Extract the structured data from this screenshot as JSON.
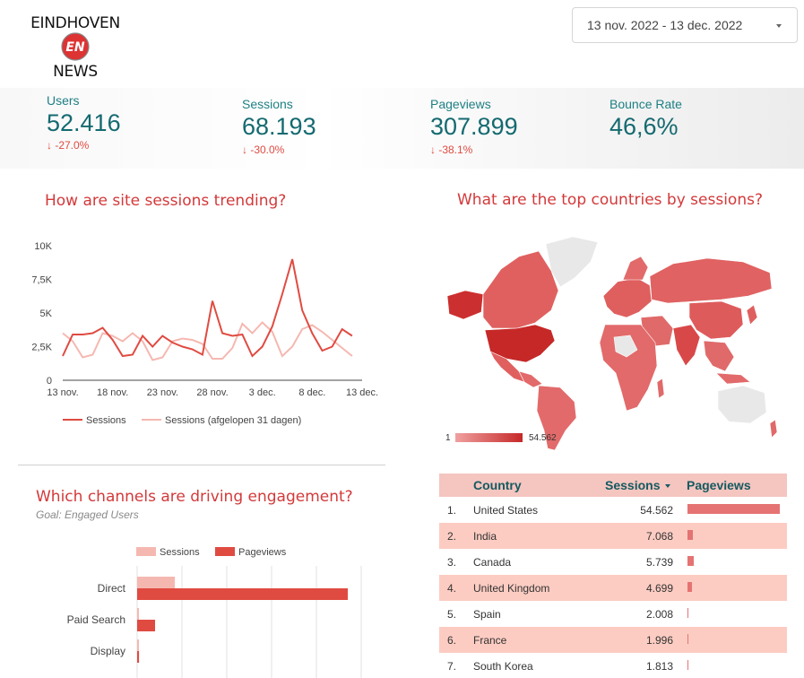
{
  "brand": {
    "line1": "EINDHOVEN",
    "line2": "NEWS",
    "mark": "EN"
  },
  "date_range": {
    "value": "13 nov. 2022 - 13 dec. 2022"
  },
  "kpis": {
    "users": {
      "label": "Users",
      "value": "52.416",
      "delta": "↓ -27.0%"
    },
    "sessions": {
      "label": "Sessions",
      "value": "68.193",
      "delta": "↓ -30.0%"
    },
    "pageviews": {
      "label": "Pageviews",
      "value": "307.899",
      "delta": "↓ -38.1%"
    },
    "bounce_rate": {
      "label": "Bounce Rate",
      "value": "46,6%"
    }
  },
  "trend": {
    "title": "How are site sessions trending?"
  },
  "map": {
    "title": "What are the top countries by sessions?",
    "legend_min": "1",
    "legend_max": "54.562"
  },
  "channels": {
    "title": "Which channels are driving engagement?",
    "subtitle": "Goal: Engaged Users"
  },
  "colors": {
    "primary": "#e04b41",
    "light": "#f5b8b1",
    "teal": "#145a60",
    "map_dark": "#cc2f2f",
    "map_mid": "#e06060"
  },
  "country_table": {
    "headers": {
      "country": "Country",
      "sessions": "Sessions",
      "pageviews": "Pageviews"
    },
    "rows": [
      {
        "rank": "1.",
        "country": "United States",
        "sessions": "54.562",
        "pv_share": 1.0
      },
      {
        "rank": "2.",
        "country": "India",
        "sessions": "7.068",
        "pv_share": 0.06
      },
      {
        "rank": "3.",
        "country": "Canada",
        "sessions": "5.739",
        "pv_share": 0.07
      },
      {
        "rank": "4.",
        "country": "United Kingdom",
        "sessions": "4.699",
        "pv_share": 0.05
      },
      {
        "rank": "5.",
        "country": "Spain",
        "sessions": "2.008",
        "pv_share": 0.01
      },
      {
        "rank": "6.",
        "country": "France",
        "sessions": "1.996",
        "pv_share": 0.01
      },
      {
        "rank": "7.",
        "country": "South Korea",
        "sessions": "1.813",
        "pv_share": 0.01
      }
    ]
  },
  "chart_data": [
    {
      "type": "line",
      "x": [
        "13 nov.",
        "14 nov.",
        "15 nov.",
        "16 nov.",
        "17 nov.",
        "18 nov.",
        "19 nov.",
        "20 nov.",
        "21 nov.",
        "22 nov.",
        "23 nov.",
        "24 nov.",
        "25 nov.",
        "26 nov.",
        "27 nov.",
        "28 nov.",
        "29 nov.",
        "30 nov.",
        "1 dec.",
        "2 dec.",
        "3 dec.",
        "4 dec.",
        "5 dec.",
        "6 dec.",
        "7 dec.",
        "8 dec.",
        "9 dec.",
        "10 dec.",
        "11 dec.",
        "12 dec.",
        "13 dec."
      ],
      "xticks": [
        "13 nov.",
        "18 nov.",
        "23 nov.",
        "28 nov.",
        "3 dec.",
        "8 dec.",
        "13 dec."
      ],
      "yticks": [
        "0",
        "2,5K",
        "5K",
        "7,5K",
        "10K"
      ],
      "ylim": [
        0,
        10000
      ],
      "series": [
        {
          "name": "Sessions",
          "color": "#e04b41",
          "values": [
            1800,
            3400,
            3400,
            3500,
            3900,
            3000,
            1800,
            1900,
            3300,
            2500,
            3300,
            2800,
            2500,
            2300,
            1900,
            5900,
            3500,
            3300,
            3400,
            1800,
            2500,
            4000,
            6400,
            9000,
            5200,
            3500,
            2200,
            2500,
            3800,
            3300,
            null
          ]
        },
        {
          "name": "Sessions (afgelopen 31 dagen)",
          "color": "#f5b8b1",
          "values": [
            3500,
            2900,
            1700,
            1900,
            3500,
            3300,
            2900,
            3500,
            2900,
            1500,
            1700,
            2900,
            3100,
            3000,
            2700,
            1600,
            1600,
            2400,
            4200,
            3500,
            4300,
            3600,
            1800,
            2500,
            3800,
            4100,
            3600,
            3000,
            2400,
            1800,
            null
          ]
        }
      ],
      "grid": false,
      "legend": "bottom"
    },
    {
      "type": "bar",
      "orientation": "horizontal",
      "categories": [
        "Direct",
        "Paid Search",
        "Display"
      ],
      "series": [
        {
          "name": "Sessions",
          "color": "#f5b8b1",
          "values": [
            42000,
            1300,
            700
          ]
        },
        {
          "name": "Pageviews",
          "color": "#e04b41",
          "values": [
            235000,
            20000,
            2100
          ]
        }
      ],
      "legend": "top",
      "grid": true
    }
  ]
}
